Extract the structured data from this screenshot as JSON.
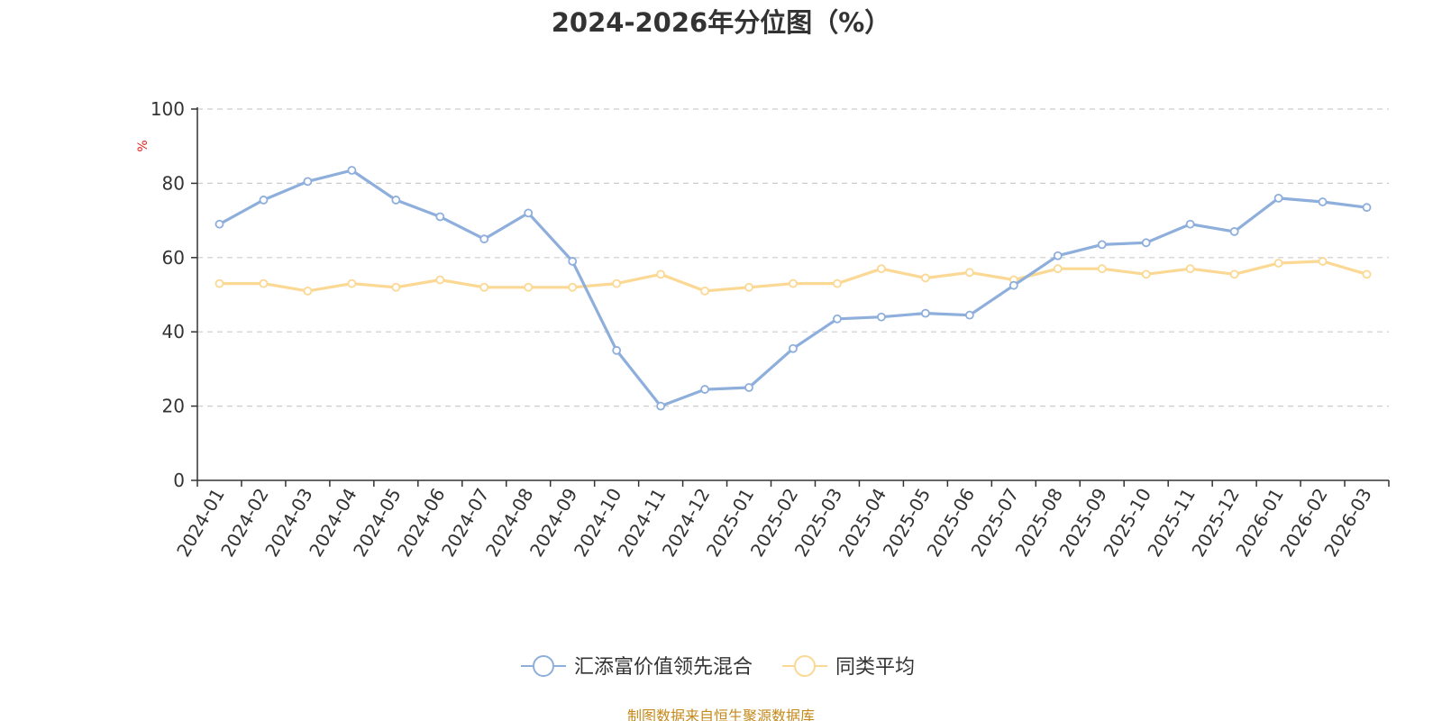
{
  "chart_data": {
    "type": "line",
    "title": "2024-2026年分位图（%）",
    "ylabel": "%",
    "ylim": [
      0,
      100
    ],
    "yticks": [
      0,
      20,
      40,
      60,
      80,
      100
    ],
    "grid": true,
    "legend_position": "bottom",
    "categories": [
      "2024-01",
      "2024-02",
      "2024-03",
      "2024-04",
      "2024-05",
      "2024-06",
      "2024-07",
      "2024-08",
      "2024-09",
      "2024-10",
      "2024-11",
      "2024-12",
      "2025-01",
      "2025-02",
      "2025-03",
      "2025-04",
      "2025-05",
      "2025-06",
      "2025-07",
      "2025-08",
      "2025-09",
      "2025-10",
      "2025-11",
      "2025-12",
      "2026-01",
      "2026-02",
      "2026-03"
    ],
    "series": [
      {
        "name": "汇添富价值领先混合",
        "color": "#8eaedc",
        "values": [
          69,
          75.5,
          80.5,
          83.5,
          75.5,
          71,
          65,
          72,
          59,
          35,
          20,
          24.5,
          25,
          35.5,
          43.5,
          44,
          45,
          44.5,
          52.5,
          60.5,
          63.5,
          64,
          69,
          67,
          76,
          75,
          73.5
        ]
      },
      {
        "name": "同类平均",
        "color": "#fbd893",
        "values": [
          53,
          53,
          51,
          53,
          52,
          54,
          52,
          52,
          52,
          53,
          55.5,
          51,
          52,
          53,
          53,
          57,
          54.5,
          56,
          54,
          57,
          57,
          55.5,
          57,
          55.5,
          58.5,
          59,
          55.5
        ]
      }
    ]
  },
  "source": "制图数据来自恒生聚源数据库"
}
